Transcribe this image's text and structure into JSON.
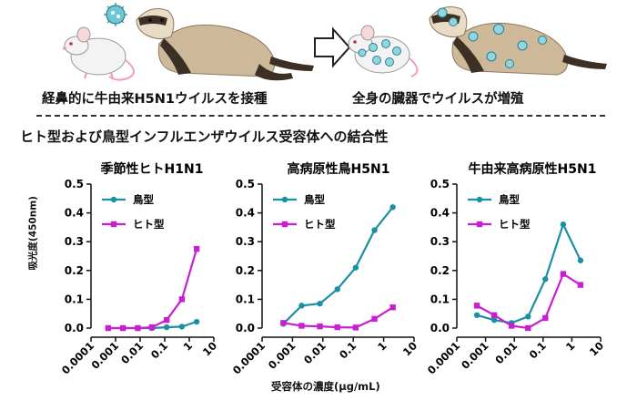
{
  "captions": {
    "left": "経鼻的に牛由来H5N1ウイルスを接種",
    "right": "全身の臓器でウイルスが増殖"
  },
  "section_title": "ヒト型および鳥型インフルエンザウイルス受容体への結合性",
  "y_axis_label": "吸光度(450nm)",
  "x_axis_label": "受容体の濃度(μg/mL)",
  "illustration_icons": [
    "virus-icon",
    "mouse-icon",
    "ferret-icon",
    "arrow-right-icon",
    "infected-mouse-icon",
    "infected-ferret-icon"
  ],
  "colors": {
    "avian": "#1b8fa3",
    "human": "#c81fd1"
  },
  "chart_data": [
    {
      "type": "line",
      "title": "季節性ヒトH1N1",
      "x_scale": "log",
      "x_ticks": [
        "0.0001",
        "0.001",
        "0.01",
        "0.1",
        "1",
        "10"
      ],
      "y_ticks": [
        "0.0",
        "0.1",
        "0.2",
        "0.3",
        "0.4",
        "0.5"
      ],
      "ylim": [
        0,
        0.5
      ],
      "legend": [
        "鳥型",
        "ヒト型"
      ],
      "series": [
        {
          "name": "鳥型",
          "x": [
            0.0005,
            0.002,
            0.008,
            0.03,
            0.12,
            0.5,
            2
          ],
          "y": [
            0.0,
            0.0,
            0.0,
            0.0,
            0.003,
            0.005,
            0.022
          ]
        },
        {
          "name": "ヒト型",
          "x": [
            0.0005,
            0.002,
            0.008,
            0.03,
            0.12,
            0.5,
            2
          ],
          "y": [
            0.0,
            0.0,
            0.0,
            0.003,
            0.028,
            0.1,
            0.275
          ]
        }
      ]
    },
    {
      "type": "line",
      "title": "高病原性鳥H5N1",
      "x_scale": "log",
      "x_ticks": [
        "0.0001",
        "0.001",
        "0.01",
        "0.1",
        "1",
        "10"
      ],
      "y_ticks": [
        "0.0",
        "0.1",
        "0.2",
        "0.3",
        "0.4",
        "0.5"
      ],
      "ylim": [
        0,
        0.5
      ],
      "legend": [
        "鳥型",
        "ヒト型"
      ],
      "series": [
        {
          "name": "鳥型",
          "x": [
            0.0005,
            0.002,
            0.008,
            0.03,
            0.12,
            0.5,
            2
          ],
          "y": [
            0.015,
            0.078,
            0.085,
            0.135,
            0.21,
            0.34,
            0.42
          ]
        },
        {
          "name": "ヒト型",
          "x": [
            0.0005,
            0.002,
            0.008,
            0.03,
            0.12,
            0.5,
            2
          ],
          "y": [
            0.018,
            0.008,
            0.006,
            0.003,
            0.002,
            0.032,
            0.072
          ]
        }
      ]
    },
    {
      "type": "line",
      "title": "牛由来高病原性H5N1",
      "x_scale": "log",
      "x_ticks": [
        "0.0001",
        "0.001",
        "0.01",
        "0.1",
        "1",
        "10"
      ],
      "y_ticks": [
        "0.0",
        "0.1",
        "0.2",
        "0.3",
        "0.4",
        "0.5"
      ],
      "ylim": [
        0,
        0.5
      ],
      "legend": [
        "鳥型",
        "ヒト型"
      ],
      "series": [
        {
          "name": "鳥型",
          "x": [
            0.0005,
            0.002,
            0.008,
            0.03,
            0.12,
            0.5,
            2
          ],
          "y": [
            0.045,
            0.028,
            0.018,
            0.04,
            0.17,
            0.36,
            0.235
          ]
        },
        {
          "name": "ヒト型",
          "x": [
            0.0005,
            0.002,
            0.008,
            0.03,
            0.12,
            0.5,
            2
          ],
          "y": [
            0.078,
            0.045,
            0.008,
            0.0,
            0.035,
            0.188,
            0.15
          ]
        }
      ]
    }
  ]
}
